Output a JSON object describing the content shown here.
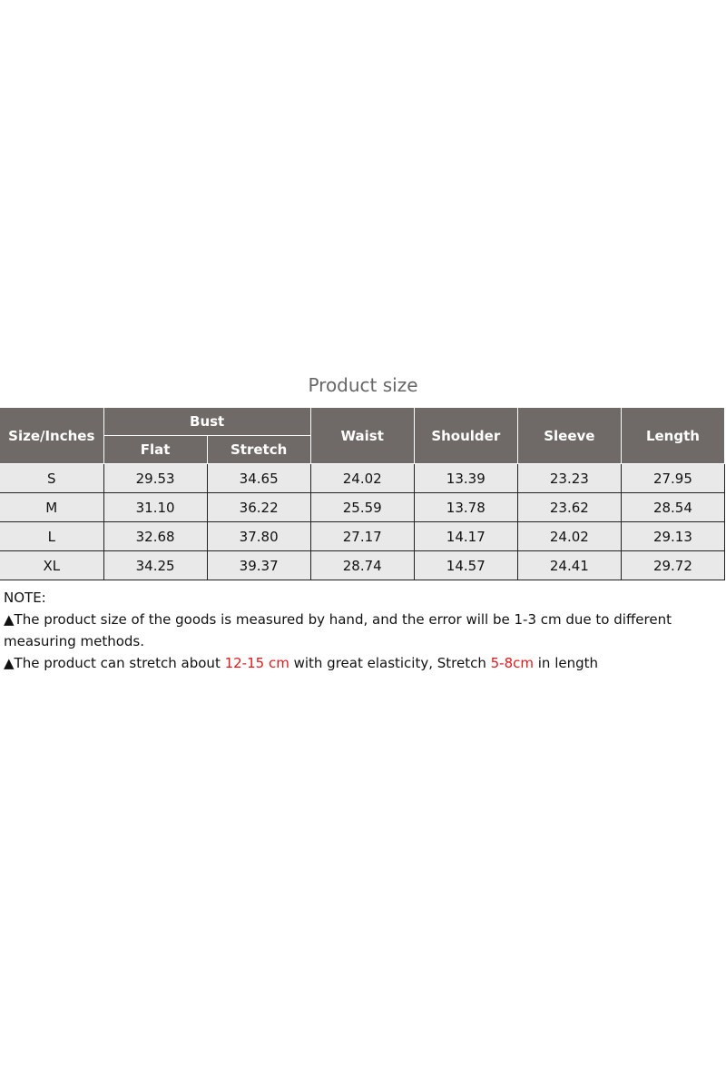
{
  "title": "Product size",
  "table": {
    "headers": {
      "size": "Size/Inches",
      "bust": "Bust",
      "flat": "Flat",
      "stretch": "Stretch",
      "waist": "Waist",
      "shoulder": "Shoulder",
      "sleeve": "Sleeve",
      "length": "Length"
    },
    "rows": [
      [
        "S",
        "29.53",
        "34.65",
        "24.02",
        "13.39",
        "23.23",
        "27.95"
      ],
      [
        "M",
        "31.10",
        "36.22",
        "25.59",
        "13.78",
        "23.62",
        "28.54"
      ],
      [
        "L",
        "32.68",
        "37.80",
        "27.17",
        "14.17",
        "24.02",
        "29.13"
      ],
      [
        "XL",
        "34.25",
        "39.37",
        "28.74",
        "14.57",
        "24.41",
        "29.72"
      ]
    ]
  },
  "notes": {
    "heading": "NOTE:",
    "note1": "▲The product size of the goods is measured by hand, and the error will be 1-3 cm due to different measuring methods.",
    "note2_a": "▲The product can stretch about ",
    "note2_red1": "12-15 cm",
    "note2_b": " with great elasticity, Stretch ",
    "note2_red2": "5-8cm",
    "note2_c": " in length",
    "highlight_color": "#e0181b"
  }
}
